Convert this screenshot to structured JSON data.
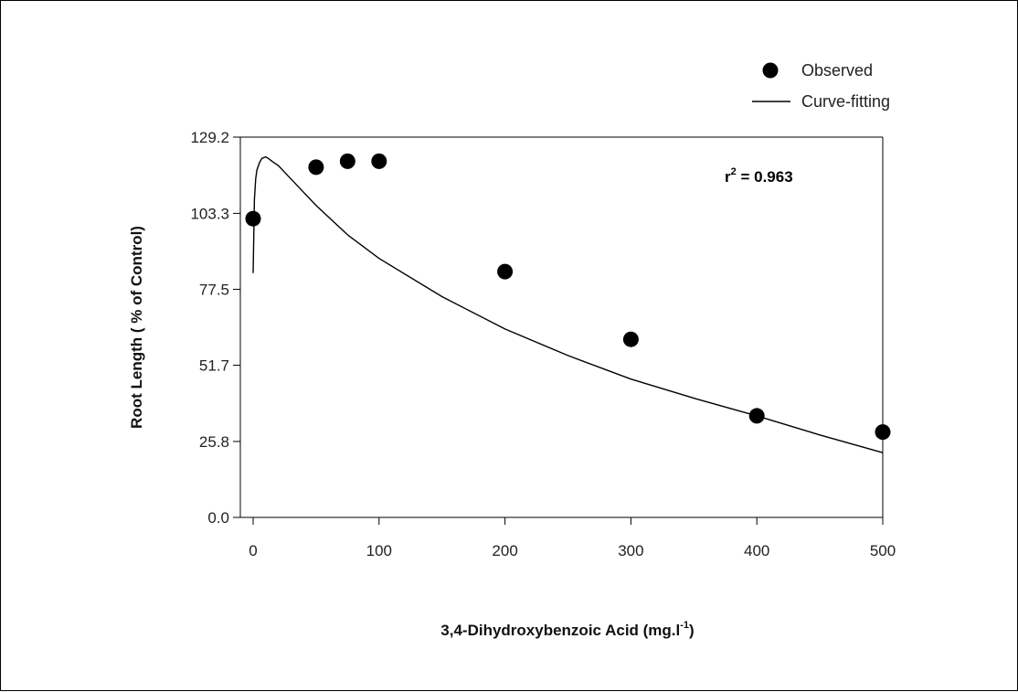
{
  "chart_data": {
    "type": "scatter",
    "xlabel_parts": [
      "3,4-Dihydroxybenzoic Acid (mg.l",
      "-1",
      ")"
    ],
    "ylabel": "Root Length ( % of Control)",
    "xlim": [
      0,
      500
    ],
    "ylim": [
      0.0,
      129.2
    ],
    "x_ticks": [
      0,
      100,
      200,
      300,
      400,
      500
    ],
    "y_ticks": [
      "0.0",
      "25.8",
      "51.7",
      "77.5",
      "103.3",
      "129.2"
    ],
    "series": [
      {
        "name": "Observed",
        "kind": "points",
        "x": [
          0,
          50,
          75,
          100,
          200,
          300,
          400,
          500
        ],
        "y": [
          101.5,
          119,
          121,
          121,
          83.5,
          60.5,
          34.5,
          29
        ]
      },
      {
        "name": "Curve-fitting",
        "kind": "line",
        "x": [
          0,
          1,
          2,
          3,
          5,
          7,
          10,
          12,
          15,
          20,
          30,
          40,
          50,
          75,
          100,
          150,
          200,
          250,
          300,
          350,
          400,
          450,
          500
        ],
        "y": [
          83,
          108,
          115,
          118,
          120.5,
          122,
          122.5,
          122,
          121,
          119.5,
          115,
          110.5,
          106,
          96,
          88,
          75,
          64,
          55,
          47,
          40.5,
          34.5,
          28,
          22
        ]
      }
    ],
    "annotation": {
      "text": "r",
      "sup": "2",
      "suffix": " = 0.963"
    },
    "legend_position": "top-right",
    "grid": false
  }
}
